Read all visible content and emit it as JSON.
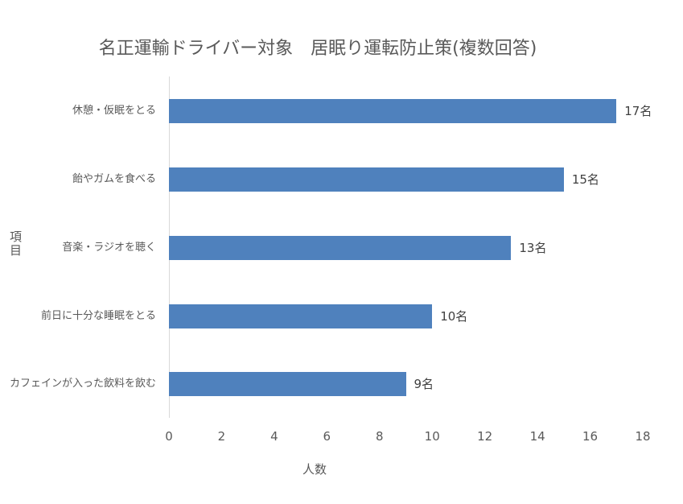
{
  "chart_data": {
    "type": "bar",
    "orientation": "horizontal",
    "title": "名正運輸ドライバー対象　居眠り運転防止策(複数回答)",
    "xlabel": "人数",
    "ylabel": "項目",
    "categories": [
      "休憩・仮眠をとる",
      "飴やガムを食べる",
      "音楽・ラジオを聴く",
      "前日に十分な睡眠をとる",
      "カフェインが入った飲料を飲む"
    ],
    "values": [
      17,
      15,
      13,
      10,
      9
    ],
    "data_labels": [
      "17名",
      "15名",
      "13名",
      "10名",
      "9名"
    ],
    "xlim": [
      0,
      18
    ],
    "x_ticks": [
      "0",
      "2",
      "4",
      "6",
      "8",
      "10",
      "12",
      "14",
      "16",
      "18"
    ],
    "grid": false,
    "legend": "none",
    "bar_color": "#4f81bd"
  }
}
